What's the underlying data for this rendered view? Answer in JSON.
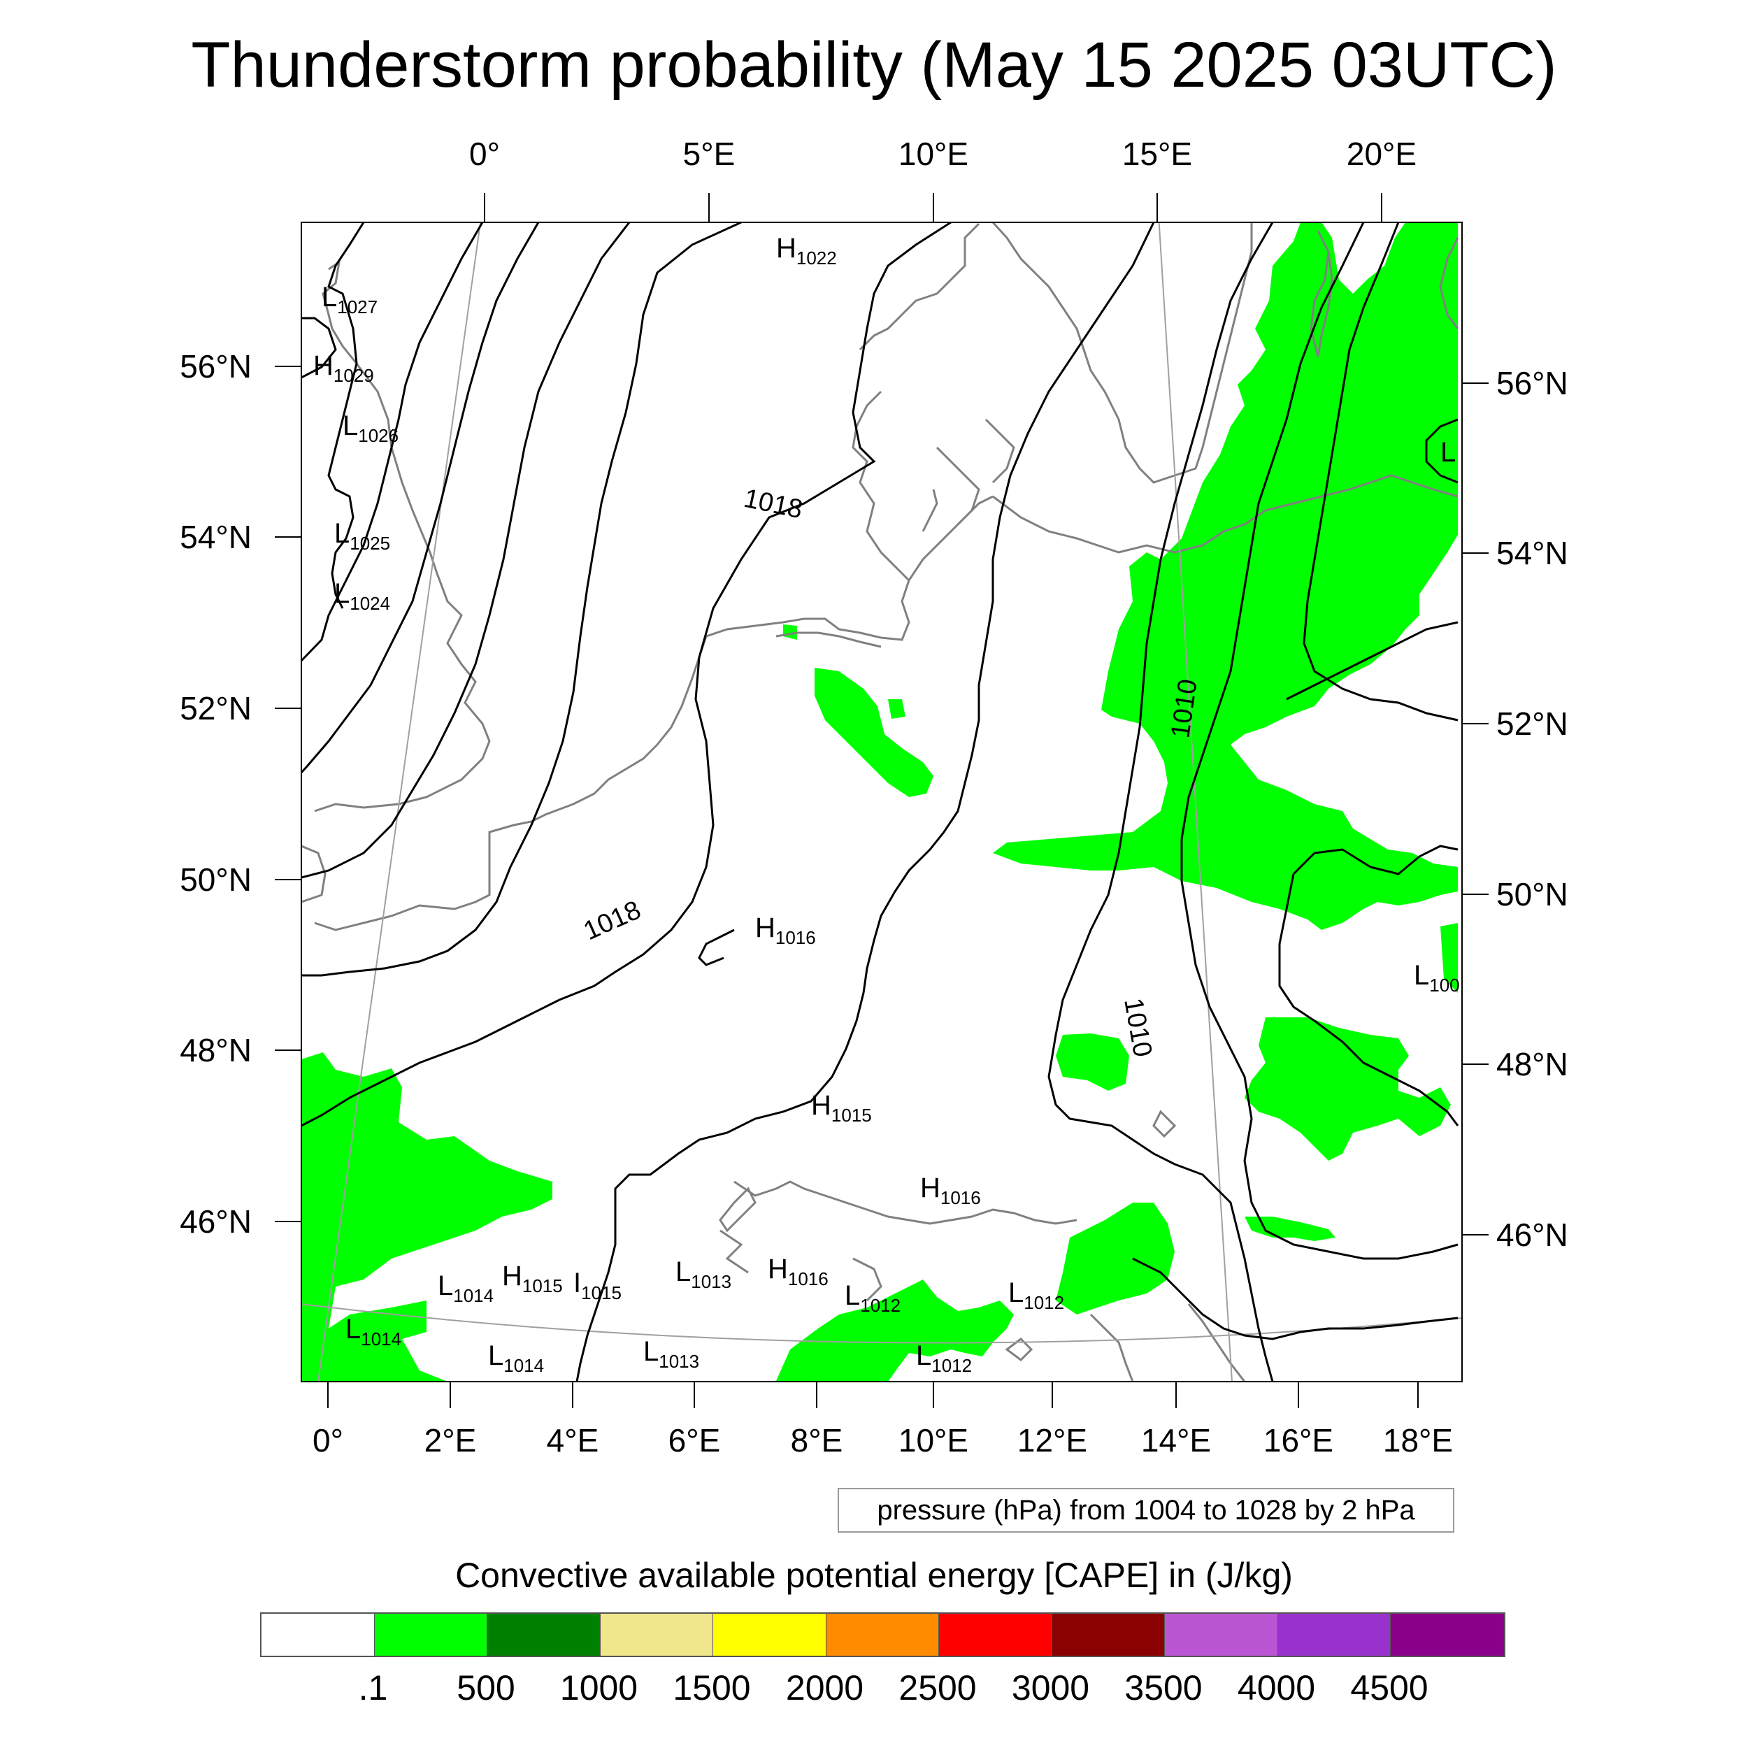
{
  "title": "Thunderstorm probability (May 15 2025 03UTC)",
  "top_axis_labels": [
    "0°",
    "5°E",
    "10°E",
    "15°E",
    "20°E"
  ],
  "left_axis_labels": [
    "56°N",
    "54°N",
    "52°N",
    "50°N",
    "48°N",
    "46°N"
  ],
  "right_axis_labels": [
    "56°N",
    "54°N",
    "52°N",
    "50°N",
    "48°N",
    "46°N"
  ],
  "bottom_axis_labels": [
    "0°",
    "2°E",
    "4°E",
    "6°E",
    "8°E",
    "10°E",
    "12°E",
    "14°E",
    "16°E",
    "18°E"
  ],
  "pressure_centers": [
    {
      "letter": "H",
      "value": "1022"
    },
    {
      "letter": "L",
      "value": "1027"
    },
    {
      "letter": "H",
      "value": "1029"
    },
    {
      "letter": "L",
      "value": "1026"
    },
    {
      "letter": "L",
      "value": "1025"
    },
    {
      "letter": "L",
      "value": "1024"
    },
    {
      "letter": "H",
      "value": "1016"
    },
    {
      "letter": "H",
      "value": "1015"
    },
    {
      "letter": "H",
      "value": "1016"
    },
    {
      "letter": "L",
      "value": "1014"
    },
    {
      "letter": "H",
      "value": "1015"
    },
    {
      "letter": "I",
      "value": "1015"
    },
    {
      "letter": "L",
      "value": "1013"
    },
    {
      "letter": "H",
      "value": "1016"
    },
    {
      "letter": "L",
      "value": "1012"
    },
    {
      "letter": "L",
      "value": "1012"
    },
    {
      "letter": "L",
      "value": "1014"
    },
    {
      "letter": "L",
      "value": "1014"
    },
    {
      "letter": "L",
      "value": "1013"
    },
    {
      "letter": "L",
      "value": "1012"
    },
    {
      "letter": "L",
      "value": "100"
    },
    {
      "letter": "L",
      "value": ""
    }
  ],
  "isobar_labels": [
    "1018",
    "1018",
    "1010",
    "1010"
  ],
  "info_box": "pressure (hPa) from 1004 to 1028 by 2 hPa",
  "colorbar": {
    "title": "Convective available potential energy [CAPE] in (J/kg)",
    "colors": [
      "#ffffff",
      "#00ff00",
      "#008000",
      "#f0e68c",
      "#ffff00",
      "#ff8c00",
      "#ff0000",
      "#8b0000",
      "#ba55d3",
      "#9932cc",
      "#8b008b"
    ],
    "labels": [
      ".1",
      "500",
      "1000",
      "1500",
      "2000",
      "2500",
      "3000",
      "3500",
      "4000",
      "4500"
    ]
  },
  "colors": {
    "cape_green": "#00ff00",
    "isobar": "#000000",
    "coastline": "#808080",
    "graticule": "#a0a0a0"
  }
}
